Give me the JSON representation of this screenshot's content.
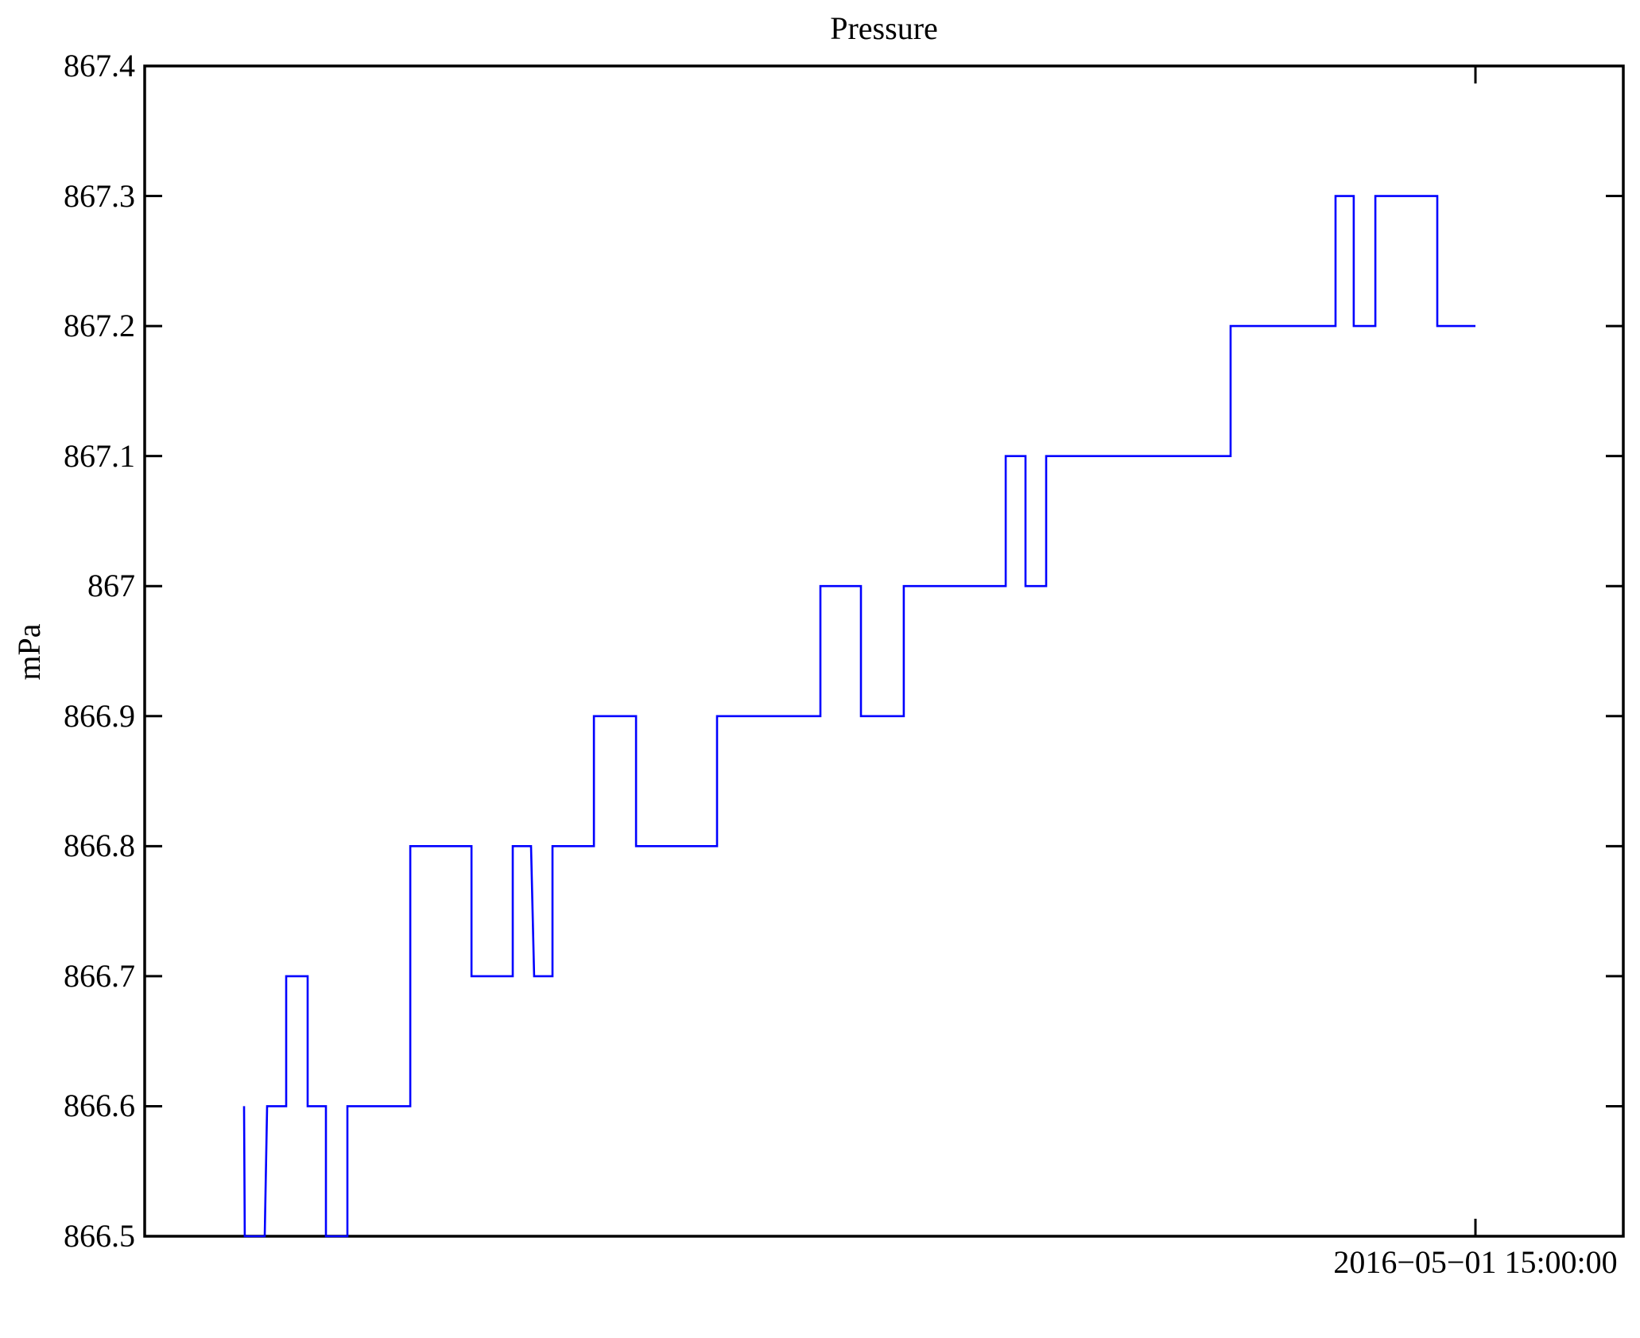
{
  "title": "Pressure",
  "y_axis_label": "mPa",
  "x_tick_label": "2016−05−01 15:00:00",
  "colors": {
    "line": "#0000ff",
    "axis": "#000000",
    "background": "#ffffff",
    "text": "#000000"
  },
  "chart_data": {
    "type": "line",
    "style": "step",
    "title": "Pressure",
    "xlabel": "",
    "ylabel": "mPa",
    "ylim": [
      866.5,
      867.4
    ],
    "grid": false,
    "legend": false,
    "series_name": "Pressure",
    "line_color": "#0000ff",
    "ytick_values": [
      866.5,
      866.6,
      866.7,
      866.8,
      866.9,
      867.0,
      867.1,
      867.2,
      867.3,
      867.4
    ],
    "ytick_labels": [
      "866.5",
      "866.6",
      "866.7",
      "866.8",
      "866.9",
      "867",
      "867.1",
      "867.2",
      "867.3",
      "867.4"
    ],
    "xticks": [
      {
        "frac": 0.9,
        "label": "2016−05−01 15:00:00"
      }
    ],
    "points": [
      [
        0.0672,
        866.6
      ],
      [
        0.0677,
        866.5
      ],
      [
        0.0812,
        866.5
      ],
      [
        0.0828,
        866.6
      ],
      [
        0.0957,
        866.6
      ],
      [
        0.0957,
        866.7
      ],
      [
        0.1102,
        866.7
      ],
      [
        0.1102,
        866.6
      ],
      [
        0.1226,
        866.6
      ],
      [
        0.1226,
        866.5
      ],
      [
        0.1371,
        866.5
      ],
      [
        0.1371,
        866.6
      ],
      [
        0.1796,
        866.6
      ],
      [
        0.1796,
        866.8
      ],
      [
        0.221,
        866.8
      ],
      [
        0.221,
        866.7
      ],
      [
        0.2489,
        866.7
      ],
      [
        0.2489,
        866.8
      ],
      [
        0.2613,
        866.8
      ],
      [
        0.2634,
        866.7
      ],
      [
        0.2758,
        866.7
      ],
      [
        0.2758,
        866.8
      ],
      [
        0.3038,
        866.8
      ],
      [
        0.3038,
        866.9
      ],
      [
        0.3323,
        866.9
      ],
      [
        0.3323,
        866.8
      ],
      [
        0.3871,
        866.8
      ],
      [
        0.3871,
        866.9
      ],
      [
        0.457,
        866.9
      ],
      [
        0.457,
        867.0
      ],
      [
        0.4844,
        867.0
      ],
      [
        0.4844,
        866.9
      ],
      [
        0.5134,
        866.9
      ],
      [
        0.5134,
        867.0
      ],
      [
        0.5823,
        867.0
      ],
      [
        0.5823,
        867.1
      ],
      [
        0.5957,
        867.1
      ],
      [
        0.5957,
        867.0
      ],
      [
        0.6097,
        867.0
      ],
      [
        0.6097,
        867.1
      ],
      [
        0.7344,
        867.1
      ],
      [
        0.7344,
        867.2
      ],
      [
        0.8054,
        867.2
      ],
      [
        0.8054,
        867.3
      ],
      [
        0.8177,
        867.3
      ],
      [
        0.8177,
        867.2
      ],
      [
        0.8323,
        867.2
      ],
      [
        0.8323,
        867.3
      ],
      [
        0.8742,
        867.3
      ],
      [
        0.8742,
        867.2
      ],
      [
        0.9,
        867.2
      ]
    ]
  }
}
